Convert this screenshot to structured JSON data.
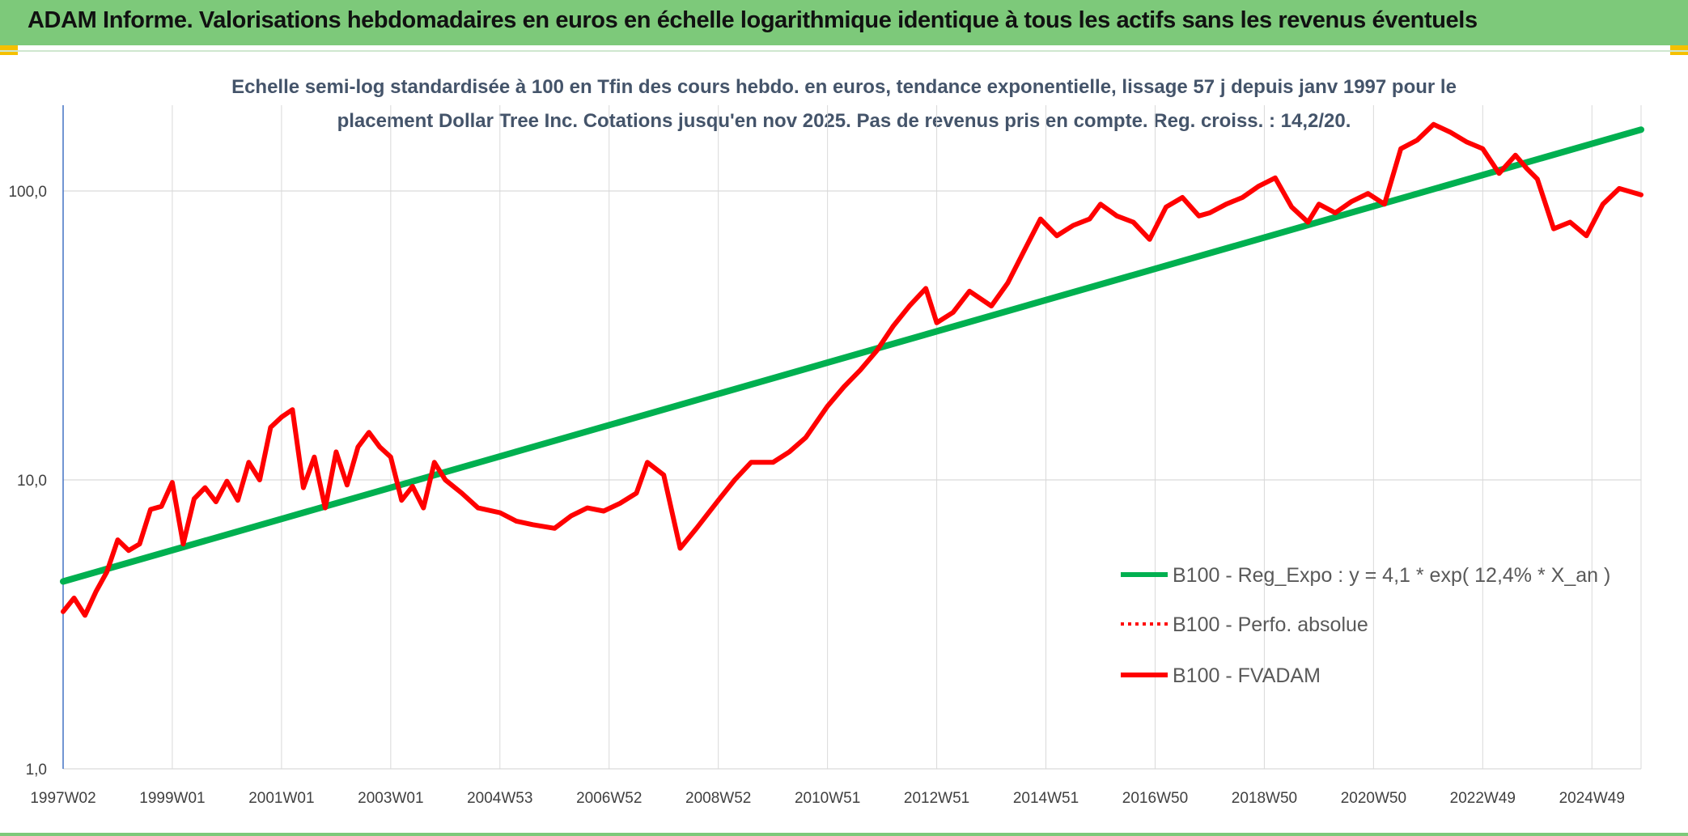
{
  "header": {
    "title": "ADAM Informe. Valorisations hebdomadaires en euros en échelle logarithmique identique à tous les actifs sans les revenus éventuels"
  },
  "colors": {
    "header_bg": "#7dc97a",
    "accent": "#f5c000",
    "trend": "#00b050",
    "fvadam": "#ff0000",
    "perfo": "#ff0000",
    "grid": "#d9d9d9"
  },
  "chart_data": {
    "type": "line",
    "title": "Echelle semi-log standardisée à 100 en Tfin des cours hebdo. en euros, tendance exponentielle, lissage 57 j depuis janv 1997 pour le",
    "subtitle": "placement Dollar Tree Inc. Cotations jusqu'en nov 2025. Pas de revenus pris en compte. Reg. croiss. : 14,2/20.",
    "y_scale": "log",
    "ylim": [
      1,
      200
    ],
    "xlim": [
      1997.0,
      2025.9
    ],
    "y_ticks": [
      {
        "value": 1,
        "label": "1,0"
      },
      {
        "value": 10,
        "label": "10,0"
      },
      {
        "value": 100,
        "label": "100,0"
      }
    ],
    "x_ticks": [
      {
        "value": 1997.0,
        "label": "1997W02"
      },
      {
        "value": 1999.0,
        "label": "1999W01"
      },
      {
        "value": 2001.0,
        "label": "2001W01"
      },
      {
        "value": 2003.0,
        "label": "2003W01"
      },
      {
        "value": 2005.0,
        "label": "2004W53"
      },
      {
        "value": 2007.0,
        "label": "2006W52"
      },
      {
        "value": 2009.0,
        "label": "2008W52"
      },
      {
        "value": 2011.0,
        "label": "2010W51"
      },
      {
        "value": 2013.0,
        "label": "2012W51"
      },
      {
        "value": 2015.0,
        "label": "2014W51"
      },
      {
        "value": 2017.0,
        "label": "2016W50"
      },
      {
        "value": 2019.0,
        "label": "2018W50"
      },
      {
        "value": 2021.0,
        "label": "2020W50"
      },
      {
        "value": 2023.0,
        "label": "2022W49"
      },
      {
        "value": 2025.0,
        "label": "2024W49"
      }
    ],
    "grid": true,
    "legend_position": "bottom-right",
    "series": [
      {
        "name": "B100 - Reg_Expo : y = 4,1 * exp( 12,4% *  X_an )",
        "style": "solid-green",
        "x": [
          1997.0,
          2025.9
        ],
        "values": [
          4.45,
          163
        ]
      },
      {
        "name": "B100 - Perfo. absolue",
        "style": "dotted-red",
        "x": [],
        "values": []
      },
      {
        "name": "B100 - FVADAM",
        "style": "solid-red",
        "x": [
          1997.0,
          1997.2,
          1997.4,
          1997.6,
          1997.8,
          1998.0,
          1998.2,
          1998.4,
          1998.6,
          1998.8,
          1999.0,
          1999.2,
          1999.4,
          1999.6,
          1999.8,
          2000.0,
          2000.2,
          2000.4,
          2000.6,
          2000.8,
          2001.0,
          2001.2,
          2001.4,
          2001.6,
          2001.8,
          2002.0,
          2002.2,
          2002.4,
          2002.6,
          2002.8,
          2003.0,
          2003.2,
          2003.4,
          2003.6,
          2003.8,
          2004.0,
          2004.3,
          2004.6,
          2005.0,
          2005.3,
          2005.6,
          2006.0,
          2006.3,
          2006.6,
          2006.9,
          2007.2,
          2007.5,
          2007.7,
          2008.0,
          2008.3,
          2008.6,
          2009.0,
          2009.3,
          2009.6,
          2010.0,
          2010.3,
          2010.6,
          2011.0,
          2011.3,
          2011.6,
          2011.9,
          2012.2,
          2012.5,
          2012.8,
          2013.0,
          2013.3,
          2013.6,
          2014.0,
          2014.3,
          2014.6,
          2014.9,
          2015.2,
          2015.5,
          2015.8,
          2016.0,
          2016.3,
          2016.6,
          2016.9,
          2017.2,
          2017.5,
          2017.8,
          2018.0,
          2018.3,
          2018.6,
          2018.9,
          2019.2,
          2019.5,
          2019.8,
          2020.0,
          2020.3,
          2020.6,
          2020.9,
          2021.2,
          2021.5,
          2021.8,
          2022.1,
          2022.4,
          2022.7,
          2023.0,
          2023.3,
          2023.6,
          2023.8,
          2024.0,
          2024.3,
          2024.6,
          2024.9,
          2025.2,
          2025.5,
          2025.9
        ],
        "values": [
          3.5,
          3.9,
          3.4,
          4.1,
          4.8,
          6.2,
          5.7,
          6.0,
          7.9,
          8.1,
          9.8,
          6.0,
          8.6,
          9.4,
          8.4,
          9.9,
          8.5,
          11.5,
          10.0,
          15.2,
          16.5,
          17.5,
          9.4,
          12.0,
          8.0,
          12.5,
          9.6,
          13.0,
          14.6,
          13.0,
          12.0,
          8.5,
          9.5,
          8.0,
          11.5,
          10.0,
          9.0,
          8.0,
          7.7,
          7.2,
          7.0,
          6.8,
          7.5,
          8.0,
          7.8,
          8.3,
          9.0,
          11.5,
          10.4,
          5.8,
          6.8,
          8.5,
          10.0,
          11.5,
          11.5,
          12.5,
          14.0,
          18.0,
          21.0,
          24.0,
          28.0,
          34.0,
          40.0,
          46.0,
          35.0,
          38.0,
          45.0,
          40.0,
          48.0,
          62.0,
          80.0,
          70.0,
          76.0,
          80.0,
          90.0,
          82.0,
          78.0,
          68.0,
          88.0,
          95.0,
          82.0,
          84.0,
          90.0,
          95.0,
          104.0,
          111.0,
          88.0,
          78.0,
          90.0,
          84.0,
          92.0,
          98.0,
          90.0,
          140.0,
          150.0,
          170.0,
          160.0,
          148.0,
          140.0,
          115.0,
          133.0,
          120.0,
          110.0,
          74.0,
          78.0,
          70.0,
          90.0,
          102.0,
          97.0
        ]
      }
    ]
  }
}
